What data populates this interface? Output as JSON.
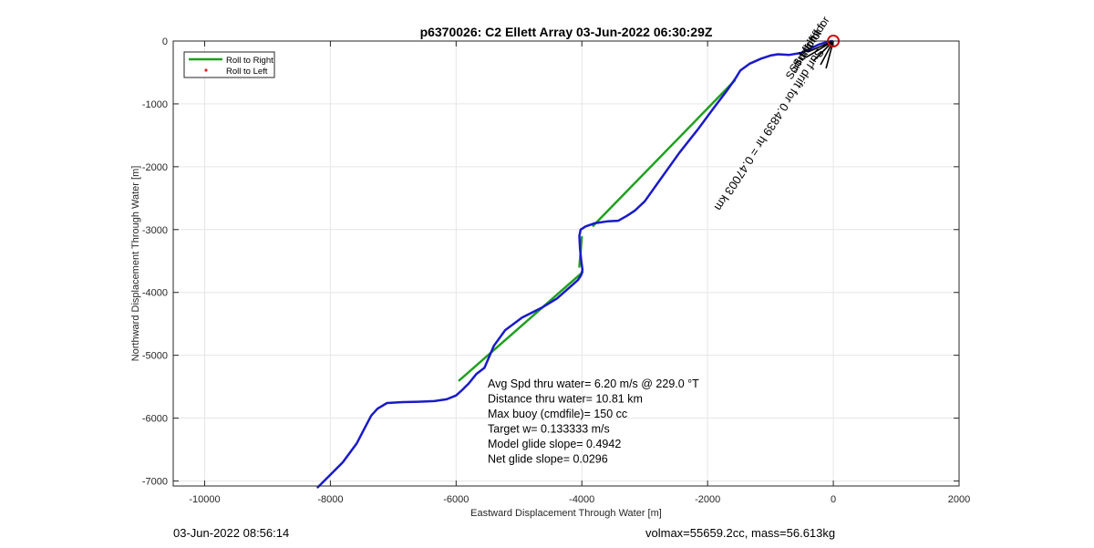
{
  "chart_data": {
    "type": "line",
    "title": "p6370026: C2 Ellett Array 03-Jun-2022 06:30:29Z",
    "xlabel": "Eastward Displacement Through Water [m]",
    "ylabel": "Northward Displacement Through Water [m]",
    "xlim": [
      -10500,
      2000
    ],
    "ylim": [
      -7080,
      0
    ],
    "xticks": [
      -10000,
      -8000,
      -6000,
      -4000,
      -2000,
      0,
      2000
    ],
    "yticks": [
      0,
      -1000,
      -2000,
      -3000,
      -4000,
      -5000,
      -6000,
      -7000
    ],
    "grid": true,
    "legend_position": "top-left",
    "legend": [
      {
        "label": "Roll to Right",
        "color": "#1fa01f",
        "style": "line"
      },
      {
        "label": "Roll to Left",
        "color": "#e02020",
        "style": "marker"
      }
    ],
    "series": [
      {
        "name": "Roll to Right",
        "color": "#1fa01f",
        "segments": [
          [
            [
              -1570,
              -630
            ],
            [
              -3820,
              -2940
            ]
          ],
          [
            [
              -4000,
              -3120
            ],
            [
              -4040,
              -3590
            ]
          ],
          [
            [
              -3990,
              -3680
            ],
            [
              -5950,
              -5400
            ]
          ]
        ]
      },
      {
        "color": "#1a1ac8",
        "x": [
          -20,
          -120,
          -240,
          -380,
          -520,
          -700,
          -880,
          -1000,
          -1150,
          -1330,
          -1480,
          -1560,
          -1700,
          -1900,
          -2150,
          -2450,
          -2750,
          -3000,
          -3160,
          -3280,
          -3420,
          -3600,
          -3800,
          -3940,
          -4020,
          -4040,
          -4030,
          -4010,
          -3990,
          -4010,
          -4060,
          -4150,
          -4400,
          -4650,
          -4950,
          -5220,
          -5400,
          -5550,
          -5680,
          -5800,
          -5900,
          -6000,
          -6150,
          -6350,
          -6600,
          -6850,
          -7100,
          -7250,
          -7350,
          -7450,
          -7580,
          -7800,
          -8000,
          -8200
        ],
        "y": [
          0,
          -20,
          -60,
          -130,
          -190,
          -220,
          -210,
          -230,
          -280,
          -360,
          -470,
          -600,
          -800,
          -1060,
          -1400,
          -1780,
          -2200,
          -2550,
          -2700,
          -2780,
          -2860,
          -2870,
          -2900,
          -2950,
          -3000,
          -3100,
          -3300,
          -3500,
          -3640,
          -3720,
          -3800,
          -3880,
          -4100,
          -4250,
          -4400,
          -4600,
          -4850,
          -5200,
          -5300,
          -5450,
          -5550,
          -5640,
          -5700,
          -5730,
          -5740,
          -5745,
          -5760,
          -5850,
          -5960,
          -6150,
          -6400,
          -6700,
          -6900,
          -7100
        ]
      }
    ],
    "markers": [
      {
        "x": 0,
        "y": 0,
        "shape": "circle",
        "color": "#cc1111"
      }
    ],
    "annotations": {
      "stats": [
        "Avg Spd thru water=  6.20 m/s @ 229.0 °T",
        "Distance thru water= 10.81 km",
        "Max buoy (cmdfile)= 150 cc",
        "Target w= 0.133333 m/s",
        "Model glide slope= 0.4942",
        "Net glide slope= 0.0296"
      ],
      "drift_label": "Surf drift for 0.4839 hr = 0.47003 km",
      "drift_overlap_label": "Surf drift for"
    }
  },
  "footer": {
    "timestamp": "03-Jun-2022 08:56:14",
    "stats": "volmax=55659.2cc, mass=56.613kg"
  }
}
